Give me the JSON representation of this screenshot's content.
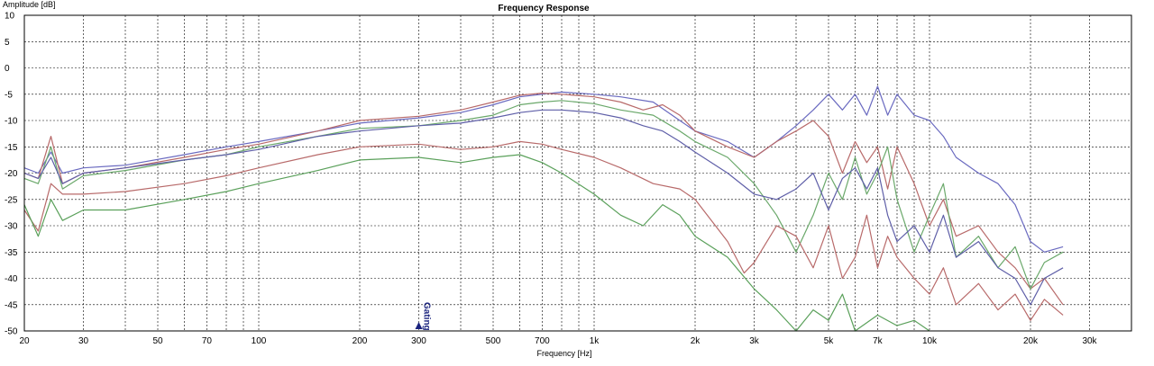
{
  "chart_data": {
    "type": "line",
    "title": "Frequency Response",
    "xlabel": "Frequency [Hz]",
    "ylabel": "Amplitude [dB]",
    "x_scale": "log",
    "xlim": [
      20,
      40000
    ],
    "ylim": [
      -50,
      10
    ],
    "grid": true,
    "x_ticks": [
      {
        "value": 20,
        "label": "20"
      },
      {
        "value": 30,
        "label": "30"
      },
      {
        "value": 50,
        "label": "50"
      },
      {
        "value": 70,
        "label": "70"
      },
      {
        "value": 100,
        "label": "100"
      },
      {
        "value": 200,
        "label": "200"
      },
      {
        "value": 300,
        "label": "300"
      },
      {
        "value": 500,
        "label": "500"
      },
      {
        "value": 700,
        "label": "700"
      },
      {
        "value": 1000,
        "label": "1k"
      },
      {
        "value": 2000,
        "label": "2k"
      },
      {
        "value": 3000,
        "label": "3k"
      },
      {
        "value": 5000,
        "label": "5k"
      },
      {
        "value": 7000,
        "label": "7k"
      },
      {
        "value": 10000,
        "label": "10k"
      },
      {
        "value": 20000,
        "label": "20k"
      },
      {
        "value": 30000,
        "label": "30k"
      }
    ],
    "y_ticks": [
      10,
      5,
      0,
      -5,
      -10,
      -15,
      -20,
      -25,
      -30,
      -35,
      -40,
      -45,
      -50
    ],
    "marker": {
      "label": "Gating",
      "x": 300
    },
    "series": [
      {
        "color": "#6a6ac0",
        "points": [
          [
            20,
            -19
          ],
          [
            22,
            -20
          ],
          [
            24,
            -16
          ],
          [
            26,
            -20
          ],
          [
            30,
            -19
          ],
          [
            40,
            -18.5
          ],
          [
            60,
            -16.5
          ],
          [
            80,
            -15
          ],
          [
            100,
            -14
          ],
          [
            150,
            -12
          ],
          [
            200,
            -10.5
          ],
          [
            300,
            -9.5
          ],
          [
            400,
            -8.5
          ],
          [
            500,
            -7
          ],
          [
            600,
            -5.5
          ],
          [
            700,
            -5
          ],
          [
            800,
            -4.6
          ],
          [
            1000,
            -5
          ],
          [
            1200,
            -5.5
          ],
          [
            1500,
            -6.5
          ],
          [
            1800,
            -10
          ],
          [
            2000,
            -12
          ],
          [
            2500,
            -14
          ],
          [
            3000,
            -17
          ],
          [
            3500,
            -14
          ],
          [
            4000,
            -11
          ],
          [
            4500,
            -8
          ],
          [
            5000,
            -5
          ],
          [
            5500,
            -8
          ],
          [
            6000,
            -5
          ],
          [
            6500,
            -9
          ],
          [
            7000,
            -3.5
          ],
          [
            7500,
            -9
          ],
          [
            8000,
            -5
          ],
          [
            9000,
            -9
          ],
          [
            10000,
            -10
          ],
          [
            11000,
            -13
          ],
          [
            12000,
            -17
          ],
          [
            14000,
            -20
          ],
          [
            16000,
            -22
          ],
          [
            18000,
            -26
          ],
          [
            20000,
            -33
          ],
          [
            22000,
            -35
          ],
          [
            25000,
            -34
          ]
        ]
      },
      {
        "color": "#b86a6a",
        "points": [
          [
            20,
            -20
          ],
          [
            22,
            -21
          ],
          [
            24,
            -13
          ],
          [
            26,
            -22
          ],
          [
            30,
            -20
          ],
          [
            40,
            -19
          ],
          [
            60,
            -17
          ],
          [
            80,
            -15.5
          ],
          [
            100,
            -14.5
          ],
          [
            150,
            -12
          ],
          [
            200,
            -10
          ],
          [
            300,
            -9.2
          ],
          [
            400,
            -8
          ],
          [
            500,
            -6.5
          ],
          [
            600,
            -5.2
          ],
          [
            700,
            -4.8
          ],
          [
            800,
            -5
          ],
          [
            1000,
            -5.5
          ],
          [
            1200,
            -6.5
          ],
          [
            1400,
            -8
          ],
          [
            1600,
            -7
          ],
          [
            1800,
            -9
          ],
          [
            2000,
            -12
          ],
          [
            2500,
            -15
          ],
          [
            3000,
            -17
          ],
          [
            3500,
            -14
          ],
          [
            4000,
            -12
          ],
          [
            4500,
            -10
          ],
          [
            5000,
            -13
          ],
          [
            5500,
            -20
          ],
          [
            6000,
            -14
          ],
          [
            6500,
            -18
          ],
          [
            7000,
            -15
          ],
          [
            7500,
            -23
          ],
          [
            8000,
            -15
          ],
          [
            9000,
            -22
          ],
          [
            10000,
            -30
          ],
          [
            11000,
            -25
          ],
          [
            12000,
            -32
          ],
          [
            14000,
            -30
          ],
          [
            16000,
            -35
          ],
          [
            18000,
            -38
          ],
          [
            20000,
            -42
          ],
          [
            22000,
            -40
          ],
          [
            25000,
            -45
          ]
        ]
      },
      {
        "color": "#6aa86a",
        "points": [
          [
            20,
            -21
          ],
          [
            22,
            -22
          ],
          [
            24,
            -15
          ],
          [
            26,
            -23
          ],
          [
            30,
            -20.5
          ],
          [
            40,
            -19.5
          ],
          [
            60,
            -17.5
          ],
          [
            80,
            -16.5
          ],
          [
            100,
            -15
          ],
          [
            150,
            -13
          ],
          [
            200,
            -11.5
          ],
          [
            300,
            -11
          ],
          [
            400,
            -10
          ],
          [
            500,
            -9
          ],
          [
            600,
            -7
          ],
          [
            700,
            -6.5
          ],
          [
            800,
            -6.2
          ],
          [
            1000,
            -6.8
          ],
          [
            1200,
            -8
          ],
          [
            1500,
            -9
          ],
          [
            1800,
            -12
          ],
          [
            2000,
            -14
          ],
          [
            2500,
            -17
          ],
          [
            3000,
            -22
          ],
          [
            3500,
            -28
          ],
          [
            4000,
            -35
          ],
          [
            4500,
            -28
          ],
          [
            5000,
            -20
          ],
          [
            5500,
            -25
          ],
          [
            6000,
            -17
          ],
          [
            6500,
            -24
          ],
          [
            7000,
            -20
          ],
          [
            7500,
            -15
          ],
          [
            8000,
            -25
          ],
          [
            9000,
            -35
          ],
          [
            10000,
            -28
          ],
          [
            11000,
            -22
          ],
          [
            12000,
            -36
          ],
          [
            14000,
            -32
          ],
          [
            16000,
            -38
          ],
          [
            18000,
            -34
          ],
          [
            20000,
            -42
          ],
          [
            22000,
            -37
          ],
          [
            25000,
            -35
          ]
        ]
      },
      {
        "color": "#5f5fa8",
        "points": [
          [
            20,
            -20
          ],
          [
            22,
            -21
          ],
          [
            24,
            -17
          ],
          [
            26,
            -22
          ],
          [
            30,
            -20
          ],
          [
            40,
            -19
          ],
          [
            60,
            -17.5
          ],
          [
            80,
            -16.5
          ],
          [
            100,
            -15.5
          ],
          [
            150,
            -13
          ],
          [
            200,
            -12
          ],
          [
            300,
            -11
          ],
          [
            400,
            -10.5
          ],
          [
            500,
            -9.5
          ],
          [
            600,
            -8.5
          ],
          [
            700,
            -8
          ],
          [
            800,
            -8
          ],
          [
            1000,
            -8.5
          ],
          [
            1200,
            -9.5
          ],
          [
            1400,
            -11
          ],
          [
            1600,
            -12
          ],
          [
            1800,
            -14
          ],
          [
            2000,
            -16
          ],
          [
            2500,
            -20
          ],
          [
            3000,
            -24
          ],
          [
            3500,
            -25
          ],
          [
            4000,
            -23
          ],
          [
            4500,
            -20
          ],
          [
            5000,
            -27
          ],
          [
            5500,
            -21
          ],
          [
            6000,
            -19
          ],
          [
            6500,
            -23
          ],
          [
            7000,
            -19
          ],
          [
            7500,
            -28
          ],
          [
            8000,
            -33
          ],
          [
            9000,
            -30
          ],
          [
            10000,
            -35
          ],
          [
            11000,
            -28
          ],
          [
            12000,
            -36
          ],
          [
            14000,
            -33
          ],
          [
            16000,
            -38
          ],
          [
            18000,
            -40
          ],
          [
            20000,
            -45
          ],
          [
            22000,
            -40
          ],
          [
            25000,
            -38
          ]
        ]
      },
      {
        "color": "#b86a6a",
        "points": [
          [
            20,
            -27
          ],
          [
            22,
            -31
          ],
          [
            24,
            -22
          ],
          [
            26,
            -24
          ],
          [
            30,
            -24
          ],
          [
            40,
            -23.5
          ],
          [
            60,
            -22
          ],
          [
            80,
            -20.5
          ],
          [
            100,
            -19
          ],
          [
            150,
            -16.5
          ],
          [
            200,
            -15
          ],
          [
            300,
            -14.5
          ],
          [
            400,
            -15.5
          ],
          [
            500,
            -15
          ],
          [
            600,
            -14
          ],
          [
            700,
            -14.5
          ],
          [
            800,
            -15.5
          ],
          [
            1000,
            -17
          ],
          [
            1200,
            -19
          ],
          [
            1500,
            -22
          ],
          [
            1800,
            -23
          ],
          [
            2000,
            -25
          ],
          [
            2500,
            -33
          ],
          [
            2800,
            -39
          ],
          [
            3000,
            -37
          ],
          [
            3500,
            -30
          ],
          [
            4000,
            -32
          ],
          [
            4500,
            -38
          ],
          [
            5000,
            -30
          ],
          [
            5500,
            -40
          ],
          [
            6000,
            -36
          ],
          [
            6500,
            -28
          ],
          [
            7000,
            -38
          ],
          [
            7500,
            -32
          ],
          [
            8000,
            -36
          ],
          [
            9000,
            -40
          ],
          [
            10000,
            -43
          ],
          [
            11000,
            -38
          ],
          [
            12000,
            -45
          ],
          [
            14000,
            -41
          ],
          [
            16000,
            -46
          ],
          [
            18000,
            -43
          ],
          [
            20000,
            -48
          ],
          [
            22000,
            -44
          ],
          [
            25000,
            -47
          ]
        ]
      },
      {
        "color": "#5aa05a",
        "points": [
          [
            20,
            -26
          ],
          [
            22,
            -32
          ],
          [
            24,
            -25
          ],
          [
            26,
            -29
          ],
          [
            30,
            -27
          ],
          [
            40,
            -27
          ],
          [
            60,
            -25
          ],
          [
            80,
            -23.5
          ],
          [
            100,
            -22
          ],
          [
            150,
            -19.5
          ],
          [
            200,
            -17.5
          ],
          [
            300,
            -17
          ],
          [
            400,
            -18
          ],
          [
            500,
            -17
          ],
          [
            600,
            -16.5
          ],
          [
            700,
            -18
          ],
          [
            800,
            -20
          ],
          [
            1000,
            -24
          ],
          [
            1200,
            -28
          ],
          [
            1400,
            -30
          ],
          [
            1600,
            -26
          ],
          [
            1800,
            -28
          ],
          [
            2000,
            -32
          ],
          [
            2500,
            -36
          ],
          [
            3000,
            -42
          ],
          [
            3500,
            -46
          ],
          [
            4000,
            -50
          ],
          [
            4500,
            -46
          ],
          [
            5000,
            -48
          ],
          [
            5500,
            -43
          ],
          [
            6000,
            -50
          ],
          [
            7000,
            -47
          ],
          [
            8000,
            -49
          ],
          [
            9000,
            -48
          ],
          [
            10000,
            -50
          ]
        ]
      }
    ]
  }
}
